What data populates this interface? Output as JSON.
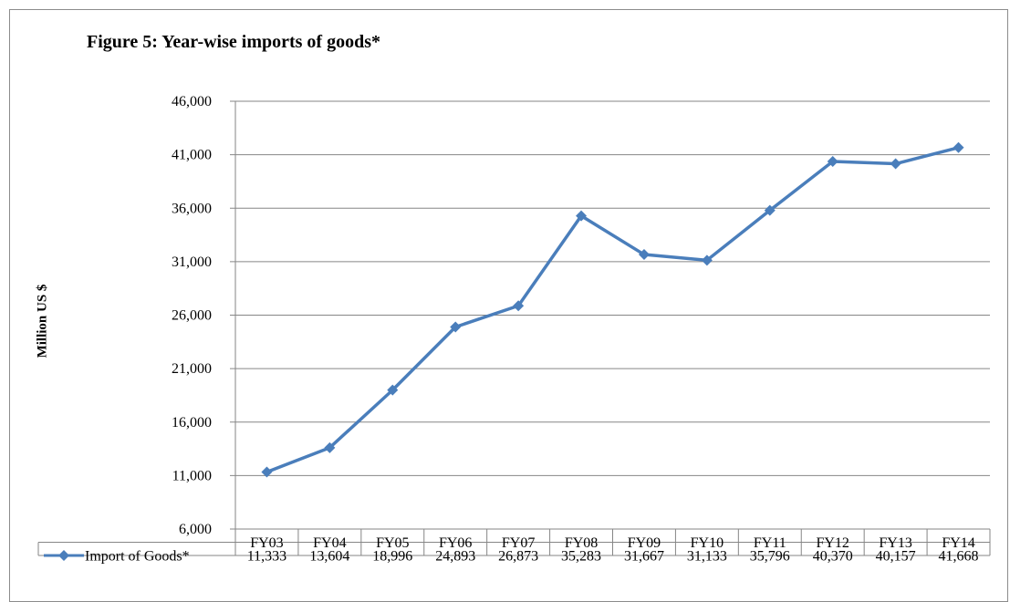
{
  "chart_data": {
    "type": "line",
    "title": "Figure 5: Year-wise imports of goods*",
    "xlabel": "",
    "ylabel": "Million US $",
    "ylim": [
      6000,
      46000
    ],
    "yticks": [
      6000,
      11000,
      16000,
      21000,
      26000,
      31000,
      36000,
      41000,
      46000
    ],
    "ytick_labels": [
      "6,000",
      "11,000",
      "16,000",
      "21,000",
      "26,000",
      "31,000",
      "36,000",
      "41,000",
      "46,000"
    ],
    "grid": true,
    "legend_placement": "data table row",
    "categories": [
      "FY03",
      "FY04",
      "FY05",
      "FY06",
      "FY07",
      "FY08",
      "FY09",
      "FY10",
      "FY11",
      "FY12",
      "FY13",
      "FY14"
    ],
    "series": [
      {
        "name": "Import of Goods*",
        "color": "#4a7ebb",
        "marker": "diamond",
        "values": [
          11333,
          13604,
          18996,
          24893,
          26873,
          35283,
          31667,
          31133,
          35796,
          40370,
          40157,
          41668
        ],
        "value_labels": [
          "11,333",
          "13,604",
          "18,996",
          "24,893",
          "26,873",
          "35,283",
          "31,667",
          "31,133",
          "35,796",
          "40,370",
          "40,157",
          "41,668"
        ]
      }
    ]
  }
}
